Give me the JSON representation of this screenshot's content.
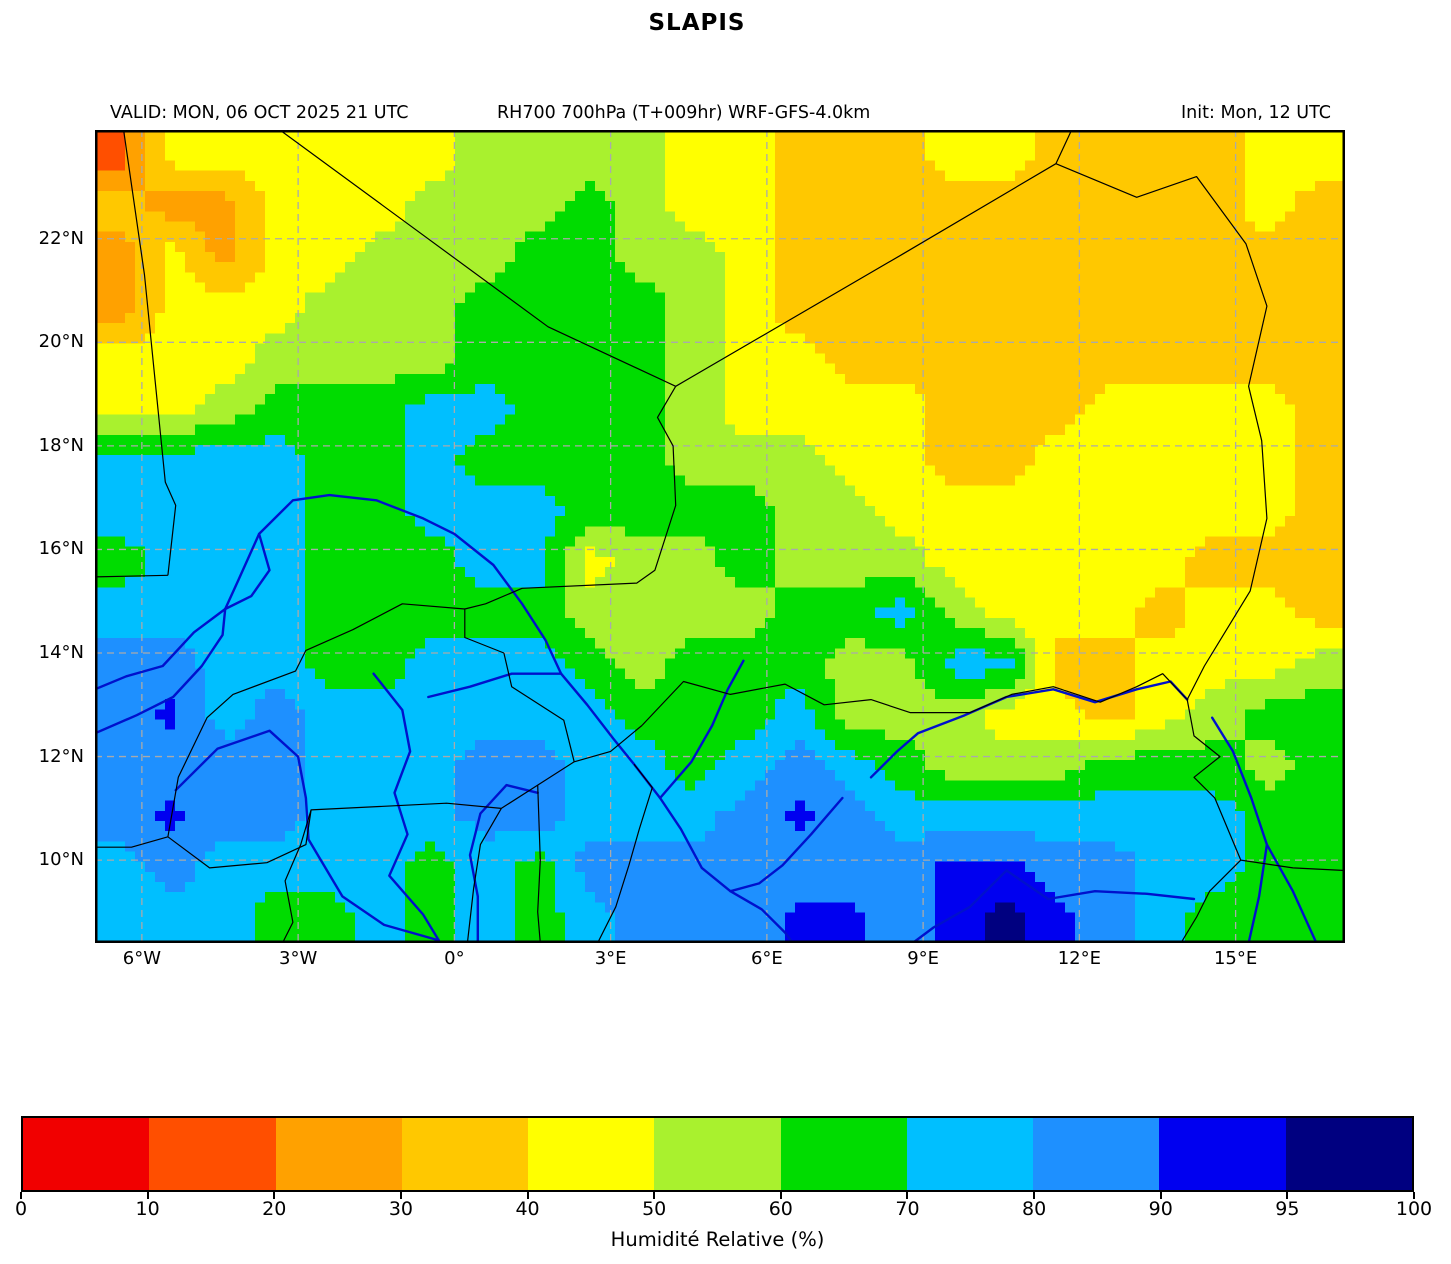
{
  "title": "SLAPIS",
  "header": {
    "valid": "VALID: MON, 06 OCT 2025 21 UTC",
    "model": "RH700 700hPa (T+009hr) WRF-GFS-4.0km",
    "init": "Init: Mon, 12 UTC"
  },
  "chart_data": {
    "type": "heatmap",
    "title": "SLAPIS",
    "field": "RH700 700hPa (T+009hr) WRF-GFS-4.0km",
    "lon_range": [
      -6.9,
      17.1
    ],
    "lat_range": [
      8.4,
      24.1
    ],
    "lon_ticks": [
      -6,
      -3,
      0,
      3,
      6,
      9,
      12,
      15
    ],
    "lon_tick_labels": [
      "6°W",
      "3°W",
      "0°",
      "3°E",
      "6°E",
      "9°E",
      "12°E",
      "15°E"
    ],
    "lat_ticks": [
      22,
      20,
      18,
      16,
      14,
      12,
      10
    ],
    "lat_tick_labels": [
      "22°N",
      "20°N",
      "18°N",
      "16°N",
      "14°N",
      "12°N",
      "10°N"
    ],
    "grid_shape": [
      16,
      24
    ],
    "rh_grid": [
      [
        15,
        45,
        45,
        45,
        45,
        45,
        45,
        55,
        55,
        55,
        55,
        45,
        45,
        35,
        35,
        35,
        45,
        45,
        35,
        35,
        35,
        35,
        45,
        45
      ],
      [
        35,
        25,
        25,
        45,
        45,
        45,
        55,
        55,
        55,
        65,
        55,
        45,
        45,
        35,
        35,
        35,
        35,
        35,
        35,
        35,
        35,
        35,
        45,
        35
      ],
      [
        25,
        45,
        25,
        45,
        45,
        55,
        55,
        55,
        65,
        65,
        55,
        55,
        45,
        35,
        35,
        35,
        35,
        35,
        35,
        35,
        35,
        35,
        35,
        35
      ],
      [
        25,
        45,
        45,
        45,
        55,
        55,
        55,
        65,
        65,
        65,
        65,
        55,
        45,
        35,
        35,
        35,
        35,
        35,
        35,
        35,
        35,
        35,
        35,
        35
      ],
      [
        45,
        45,
        45,
        55,
        55,
        55,
        55,
        65,
        65,
        65,
        65,
        55,
        45,
        45,
        35,
        35,
        35,
        35,
        35,
        35,
        35,
        35,
        35,
        35
      ],
      [
        45,
        45,
        55,
        65,
        65,
        65,
        75,
        75,
        65,
        65,
        65,
        55,
        45,
        45,
        45,
        45,
        35,
        35,
        35,
        45,
        45,
        45,
        45,
        35
      ],
      [
        75,
        75,
        75,
        75,
        65,
        65,
        75,
        65,
        65,
        65,
        65,
        55,
        55,
        55,
        45,
        45,
        35,
        35,
        45,
        45,
        45,
        45,
        45,
        35
      ],
      [
        75,
        75,
        75,
        75,
        65,
        65,
        75,
        75,
        75,
        65,
        65,
        65,
        65,
        55,
        55,
        45,
        45,
        45,
        45,
        45,
        45,
        45,
        45,
        35
      ],
      [
        65,
        75,
        75,
        75,
        65,
        65,
        65,
        75,
        75,
        45,
        55,
        55,
        65,
        55,
        55,
        55,
        45,
        45,
        45,
        45,
        45,
        35,
        35,
        35
      ],
      [
        75,
        75,
        75,
        75,
        65,
        65,
        65,
        65,
        65,
        55,
        55,
        55,
        55,
        65,
        65,
        75,
        55,
        45,
        45,
        45,
        35,
        45,
        45,
        35
      ],
      [
        85,
        85,
        75,
        75,
        65,
        65,
        75,
        75,
        75,
        65,
        55,
        65,
        65,
        65,
        55,
        55,
        75,
        75,
        35,
        35,
        45,
        45,
        45,
        55
      ],
      [
        85,
        92,
        75,
        85,
        75,
        75,
        75,
        75,
        75,
        75,
        65,
        65,
        65,
        75,
        55,
        55,
        55,
        45,
        45,
        35,
        45,
        55,
        65,
        65
      ],
      [
        85,
        85,
        85,
        85,
        75,
        75,
        75,
        85,
        85,
        75,
        75,
        65,
        75,
        85,
        75,
        65,
        55,
        55,
        55,
        65,
        65,
        65,
        55,
        65
      ],
      [
        85,
        92,
        85,
        85,
        75,
        75,
        75,
        85,
        85,
        75,
        75,
        75,
        85,
        92,
        85,
        75,
        75,
        75,
        75,
        75,
        75,
        75,
        65,
        65
      ],
      [
        75,
        85,
        75,
        75,
        75,
        75,
        65,
        75,
        65,
        85,
        85,
        85,
        85,
        85,
        85,
        85,
        92,
        92,
        85,
        85,
        75,
        75,
        65,
        65
      ],
      [
        75,
        75,
        75,
        65,
        65,
        75,
        65,
        75,
        65,
        75,
        85,
        85,
        85,
        92,
        92,
        85,
        92,
        97,
        92,
        85,
        75,
        65,
        65,
        65
      ]
    ],
    "colorbar": {
      "label": "Humidité Relative (%)",
      "bounds": [
        0,
        10,
        20,
        30,
        40,
        50,
        60,
        70,
        80,
        90,
        95,
        100
      ],
      "tick_labels": [
        "0",
        "10",
        "20",
        "30",
        "40",
        "50",
        "60",
        "70",
        "80",
        "90",
        "95",
        "100"
      ],
      "colors": [
        "#f10000",
        "#ff4f00",
        "#ffa100",
        "#ffc800",
        "#ffff00",
        "#a9f12e",
        "#00dc00",
        "#00bfff",
        "#1e90ff",
        "#0000f0",
        "#000080"
      ]
    },
    "gridline_color": "#aaaaaa",
    "border_color": "#000000",
    "river_color": "#0011cc",
    "borders": [
      [
        [
          -6.35,
          24.1
        ],
        [
          -5.95,
          21.3
        ],
        [
          -5.55,
          17.3
        ],
        [
          -5.35,
          16.85
        ],
        [
          -5.5,
          15.5
        ]
      ],
      [
        [
          -6.9,
          15.47
        ],
        [
          -5.5,
          15.5
        ]
      ],
      [
        [
          -3.35,
          24.1
        ],
        [
          1.8,
          20.3
        ],
        [
          4.25,
          19.15
        ]
      ],
      [
        [
          4.25,
          19.15
        ],
        [
          8.6,
          21.7
        ],
        [
          11.55,
          23.45
        ]
      ],
      [
        [
          11.55,
          23.45
        ],
        [
          11.85,
          24.1
        ]
      ],
      [
        [
          11.55,
          23.45
        ],
        [
          13.1,
          22.8
        ],
        [
          14.25,
          23.2
        ],
        [
          15.2,
          21.9
        ],
        [
          15.6,
          20.7
        ],
        [
          15.25,
          19.15
        ],
        [
          15.5,
          18.1
        ],
        [
          15.6,
          16.6
        ],
        [
          15.28,
          15.2
        ],
        [
          14.4,
          13.75
        ],
        [
          14.07,
          13.1
        ]
      ],
      [
        [
          14.07,
          13.1
        ],
        [
          14.2,
          12.4
        ],
        [
          14.7,
          12.0
        ],
        [
          14.2,
          11.6
        ],
        [
          14.6,
          11.2
        ],
        [
          15.1,
          10.0
        ],
        [
          14.5,
          9.4
        ],
        [
          14.25,
          8.9
        ],
        [
          13.95,
          8.4
        ]
      ],
      [
        [
          15.1,
          10.0
        ],
        [
          16.1,
          9.85
        ],
        [
          17.1,
          9.8
        ]
      ],
      [
        [
          3.6,
          12.6
        ],
        [
          4.4,
          13.45
        ],
        [
          5.3,
          13.2
        ],
        [
          6.35,
          13.4
        ],
        [
          7.1,
          13.0
        ],
        [
          8.0,
          13.1
        ],
        [
          8.75,
          12.85
        ],
        [
          9.9,
          12.85
        ],
        [
          10.7,
          13.2
        ],
        [
          11.5,
          13.35
        ],
        [
          12.4,
          13.05
        ],
        [
          13.1,
          13.35
        ],
        [
          13.6,
          13.6
        ],
        [
          14.07,
          13.1
        ]
      ],
      [
        [
          4.25,
          19.15
        ],
        [
          3.9,
          18.55
        ],
        [
          4.2,
          18.0
        ],
        [
          4.25,
          16.85
        ],
        [
          3.85,
          15.6
        ],
        [
          3.5,
          15.35
        ],
        [
          1.3,
          15.25
        ],
        [
          0.6,
          14.95
        ],
        [
          0.2,
          14.85
        ],
        [
          0.2,
          14.3
        ],
        [
          0.95,
          14.0
        ]
      ],
      [
        [
          0.95,
          14.0
        ],
        [
          1.1,
          13.35
        ],
        [
          2.1,
          12.7
        ],
        [
          2.3,
          11.9
        ]
      ],
      [
        [
          -5.5,
          10.45
        ],
        [
          -5.3,
          11.6
        ],
        [
          -4.75,
          12.75
        ],
        [
          -4.25,
          13.2
        ],
        [
          -3.05,
          13.65
        ],
        [
          -2.85,
          14.05
        ],
        [
          -1.95,
          14.45
        ],
        [
          -1.0,
          14.95
        ],
        [
          0.2,
          14.85
        ]
      ],
      [
        [
          -5.5,
          10.45
        ],
        [
          -4.7,
          9.85
        ],
        [
          -3.6,
          9.95
        ],
        [
          -2.85,
          10.3
        ],
        [
          -2.75,
          10.97
        ],
        [
          -0.15,
          11.1
        ],
        [
          0.9,
          11.0
        ],
        [
          1.6,
          11.45
        ],
        [
          2.3,
          11.9
        ]
      ],
      [
        [
          -6.9,
          10.25
        ],
        [
          -6.2,
          10.25
        ],
        [
          -5.5,
          10.45
        ]
      ],
      [
        [
          0.9,
          11.0
        ],
        [
          0.5,
          10.3
        ],
        [
          0.37,
          9.45
        ],
        [
          0.25,
          8.4
        ]
      ],
      [
        [
          1.6,
          11.45
        ],
        [
          1.65,
          10.0
        ],
        [
          1.6,
          9.0
        ],
        [
          1.65,
          8.4
        ]
      ],
      [
        [
          3.45,
          11.85
        ],
        [
          3.8,
          11.4
        ],
        [
          3.55,
          10.6
        ],
        [
          3.35,
          9.9
        ],
        [
          3.1,
          9.1
        ],
        [
          2.75,
          8.4
        ]
      ],
      [
        [
          -2.75,
          10.97
        ],
        [
          -2.95,
          10.3
        ],
        [
          -3.25,
          9.6
        ],
        [
          -3.1,
          8.8
        ],
        [
          -3.3,
          8.4
        ]
      ],
      [
        [
          2.3,
          11.9
        ],
        [
          3.0,
          12.1
        ],
        [
          3.6,
          12.6
        ]
      ]
    ],
    "rivers": [
      [
        [
          -6.9,
          13.3
        ],
        [
          -6.3,
          13.55
        ],
        [
          -5.6,
          13.75
        ],
        [
          -5.0,
          14.4
        ],
        [
          -4.4,
          14.85
        ],
        [
          -4.15,
          15.4
        ],
        [
          -3.75,
          16.3
        ],
        [
          -3.1,
          16.95
        ],
        [
          -2.4,
          17.05
        ],
        [
          -1.5,
          16.95
        ],
        [
          -0.6,
          16.6
        ],
        [
          0.0,
          16.3
        ],
        [
          0.75,
          15.7
        ],
        [
          1.3,
          14.95
        ],
        [
          1.75,
          14.25
        ],
        [
          2.05,
          13.6
        ],
        [
          2.55,
          13.0
        ],
        [
          3.05,
          12.35
        ],
        [
          3.45,
          11.85
        ],
        [
          3.95,
          11.2
        ],
        [
          4.35,
          10.6
        ],
        [
          4.75,
          9.85
        ],
        [
          5.3,
          9.4
        ],
        [
          5.9,
          9.05
        ],
        [
          6.35,
          8.6
        ],
        [
          6.5,
          8.4
        ]
      ],
      [
        [
          -6.9,
          12.45
        ],
        [
          -6.1,
          12.8
        ],
        [
          -5.4,
          13.15
        ],
        [
          -4.85,
          13.75
        ],
        [
          -4.45,
          14.35
        ],
        [
          -4.4,
          14.85
        ]
      ],
      [
        [
          -5.35,
          11.35
        ],
        [
          -4.55,
          12.15
        ],
        [
          -3.55,
          12.5
        ],
        [
          -3.0,
          12.0
        ],
        [
          -2.85,
          11.2
        ],
        [
          -2.8,
          10.4
        ],
        [
          -2.15,
          9.3
        ],
        [
          -1.35,
          8.75
        ],
        [
          -0.3,
          8.45
        ]
      ],
      [
        [
          -1.55,
          13.6
        ],
        [
          -1.0,
          12.9
        ],
        [
          -0.85,
          12.1
        ],
        [
          -1.15,
          11.3
        ],
        [
          -0.9,
          10.5
        ],
        [
          -1.25,
          9.7
        ],
        [
          -0.6,
          8.95
        ],
        [
          -0.3,
          8.45
        ]
      ],
      [
        [
          1.6,
          11.3
        ],
        [
          1.0,
          11.45
        ],
        [
          0.5,
          10.9
        ],
        [
          0.3,
          10.1
        ],
        [
          0.45,
          9.3
        ],
        [
          0.45,
          8.4
        ]
      ],
      [
        [
          5.55,
          13.85
        ],
        [
          5.25,
          13.3
        ],
        [
          4.95,
          12.6
        ],
        [
          4.55,
          11.9
        ],
        [
          3.95,
          11.2
        ]
      ],
      [
        [
          7.45,
          11.2
        ],
        [
          6.85,
          10.5
        ],
        [
          6.3,
          9.9
        ],
        [
          5.85,
          9.55
        ],
        [
          5.3,
          9.4
        ]
      ],
      [
        [
          14.2,
          9.25
        ],
        [
          13.3,
          9.35
        ],
        [
          12.3,
          9.4
        ],
        [
          11.4,
          9.25
        ],
        [
          10.6,
          9.8
        ],
        [
          9.9,
          9.1
        ],
        [
          9.2,
          8.7
        ],
        [
          8.8,
          8.4
        ]
      ],
      [
        [
          8.0,
          11.6
        ],
        [
          8.5,
          12.1
        ],
        [
          8.9,
          12.45
        ],
        [
          9.8,
          12.8
        ],
        [
          10.6,
          13.15
        ],
        [
          11.5,
          13.3
        ],
        [
          12.3,
          13.05
        ],
        [
          13.1,
          13.3
        ],
        [
          13.75,
          13.45
        ],
        [
          14.07,
          13.1
        ]
      ],
      [
        [
          16.55,
          8.4
        ],
        [
          16.1,
          9.4
        ],
        [
          15.6,
          10.3
        ],
        [
          15.3,
          11.2
        ],
        [
          14.95,
          12.1
        ],
        [
          14.55,
          12.75
        ]
      ],
      [
        [
          -0.5,
          13.15
        ],
        [
          0.3,
          13.35
        ],
        [
          1.1,
          13.6
        ],
        [
          2.05,
          13.6
        ]
      ],
      [
        [
          -4.4,
          14.85
        ],
        [
          -3.9,
          15.1
        ],
        [
          -3.55,
          15.6
        ],
        [
          -3.75,
          16.3
        ]
      ],
      [
        [
          15.25,
          8.4
        ],
        [
          15.45,
          9.3
        ],
        [
          15.6,
          10.3
        ]
      ]
    ]
  }
}
